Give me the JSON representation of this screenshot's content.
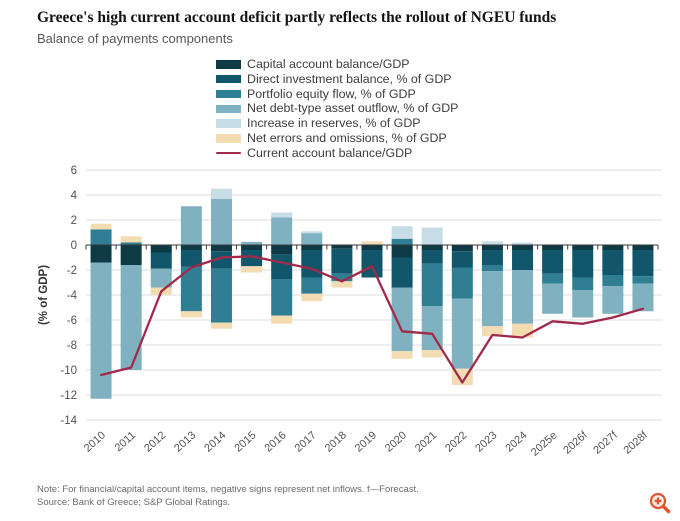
{
  "header": {
    "title": "Greece's high current account deficit partly reflects the rollout of NGEU funds",
    "subtitle": "Balance of payments components"
  },
  "footer": {
    "note": "Note: For financial/capital account items, negative signs represent net inflows. f—Forecast.",
    "source": "Source: Bank of Greece; S&P Global Ratings."
  },
  "icons": {
    "zoom_magnifier": "magnifier-plus-icon"
  },
  "colors": {
    "background": "#ffffff",
    "gridline": "#e4e4e4",
    "axis": "#3a3a3a",
    "tick_label": "#525252",
    "accent_line": "#a12a4a",
    "zoom_icon": "#e4532b"
  },
  "chart_data": {
    "type": "bar",
    "stacked": true,
    "title": "Greece's high current account deficit partly reflects the rollout of NGEU funds",
    "subtitle": "Balance of payments components",
    "xlabel": "",
    "ylabel": "(% of GDP)",
    "ylim": [
      -14,
      6
    ],
    "ytick_step": 2,
    "grid": true,
    "legend_position": "top-center",
    "categories": [
      "2010",
      "2011",
      "2012",
      "2013",
      "2014",
      "2015",
      "2016",
      "2017",
      "2018",
      "2019",
      "2020",
      "2021",
      "2022",
      "2023",
      "2024",
      "2025e",
      "2026f",
      "2027f",
      "2028f"
    ],
    "series": [
      {
        "name": "Capital account balance/GDP",
        "color": "#0e3a46",
        "values": [
          -1.4,
          -1.6,
          -0.6,
          -0.4,
          -0.5,
          -0.4,
          -0.75,
          -0.4,
          -0.3,
          -0.4,
          -1.0,
          -0.4,
          -0.5,
          -0.4,
          -0.4,
          -0.4,
          -0.4,
          -0.4,
          -0.4
        ]
      },
      {
        "name": "Direct investment balance, % of GDP",
        "color": "#12566b",
        "values": [
          0,
          0,
          -1.3,
          -1.35,
          -1.4,
          -1.3,
          -2.0,
          -2.2,
          -2.0,
          -2.2,
          -2.4,
          -1.1,
          -1.3,
          -1.2,
          -1.6,
          -1.9,
          -2.2,
          -2.0,
          -2.1
        ]
      },
      {
        "name": "Portfolio equity flow, % of GDP",
        "color": "#2f7e94",
        "values": [
          1.25,
          0.2,
          0,
          -3.55,
          -4.3,
          0,
          -2.9,
          -1.3,
          -0.6,
          0,
          0.5,
          -3.4,
          -2.5,
          -0.5,
          0,
          -0.8,
          -1.0,
          -0.9,
          -0.6
        ]
      },
      {
        "name": "Net debt-type asset outflow, % of GDP",
        "color": "#7fb1c0",
        "values": [
          -10.9,
          -8.4,
          -1.5,
          3.1,
          3.7,
          0.25,
          2.2,
          0.95,
          0,
          0,
          -5.1,
          -3.5,
          -5.6,
          -4.4,
          -4.3,
          -2.4,
          -2.2,
          -2.2,
          -2.2
        ]
      },
      {
        "name": "Increase in reserves, % of GDP",
        "color": "#c7dde6",
        "values": [
          0,
          0,
          0,
          0,
          0.8,
          0,
          0.4,
          0.15,
          0,
          0,
          1.0,
          1.4,
          0,
          0.3,
          0.2,
          0,
          0,
          0,
          0
        ]
      },
      {
        "name": "Net errors and omissions, % of GDP",
        "color": "#f3dcb2",
        "values": [
          0.45,
          0.5,
          -0.6,
          -0.5,
          -0.5,
          -0.5,
          -0.65,
          -0.6,
          -0.5,
          0.3,
          -0.6,
          -0.6,
          -1.3,
          -0.8,
          -1.1,
          0,
          0,
          0,
          0
        ]
      }
    ],
    "line_series": {
      "name": "Current account balance/GDP",
      "color": "#a12a4a",
      "values": [
        -10.4,
        -9.8,
        -3.7,
        -1.8,
        -1.0,
        -0.9,
        -1.4,
        -1.9,
        -2.9,
        -1.7,
        -6.9,
        -7.1,
        -11.0,
        -7.2,
        -7.4,
        -6.1,
        -6.3,
        -5.8,
        -5.1
      ]
    }
  }
}
